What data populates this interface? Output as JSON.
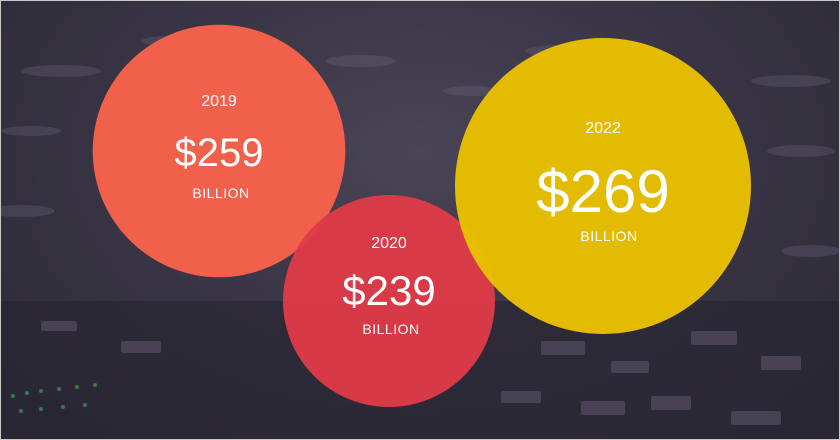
{
  "slide": {
    "background": "#3a3646",
    "border_color": "#c9c9c9"
  },
  "chart_data": {
    "type": "bubble",
    "categories": [
      "2019",
      "2020",
      "2022"
    ],
    "values": [
      259,
      239,
      269
    ],
    "value_labels": [
      "$259",
      "$239",
      "$269"
    ],
    "unit": "BILLION",
    "colors": [
      "#f0604b",
      "#e03a48",
      "#e8c000"
    ],
    "title": "",
    "xlabel": "",
    "ylabel": ""
  }
}
